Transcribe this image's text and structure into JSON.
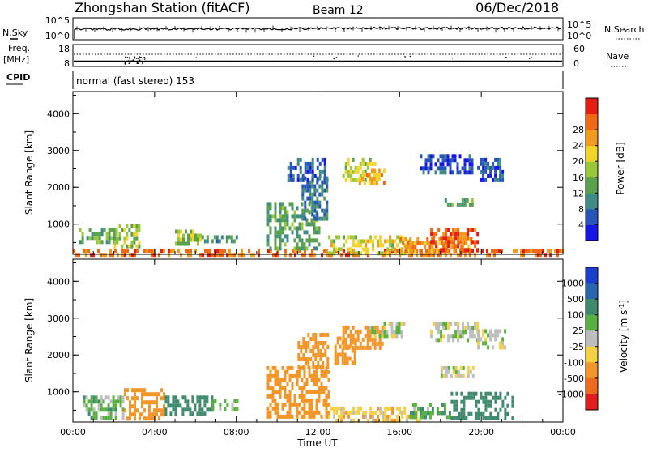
{
  "header": {
    "station": "Zhongshan Station (fitACF)",
    "beam": "Beam 12",
    "date": "06/Dec/2018"
  },
  "top_panels": {
    "nsky_label": "N.Sky",
    "nsky_ticks": [
      "10^5",
      "10^0"
    ],
    "nsearch_label": "N.Search",
    "nsearch_ticks": [
      "10^5",
      "10^0"
    ],
    "freq_label": "Freq.",
    "freq_unit": "[MHz]",
    "freq_ticks": [
      "18",
      "8"
    ],
    "nave_label": "Nave",
    "nave_ticks": [
      "60",
      "0"
    ],
    "cpid_label": "CPID",
    "cpid_text": "normal (fast stereo) 153"
  },
  "axes": {
    "xlabel": "Time UT",
    "x_ticks": [
      "00:00",
      "04:00",
      "08:00",
      "12:00",
      "16:00",
      "20:00",
      "00:00"
    ],
    "ylabel": "Slant Range [km]",
    "y_ticks": [
      "1000",
      "2000",
      "3000",
      "4000"
    ]
  },
  "colorbars": {
    "power": {
      "label": "Power [dB]",
      "ticks": [
        "4",
        "8",
        "12",
        "16",
        "20",
        "24",
        "28"
      ],
      "colors": [
        "#1616e6",
        "#2855b8",
        "#3f8c86",
        "#5aa14e",
        "#9ac73a",
        "#f2d42a",
        "#f29a1e",
        "#ef6a12",
        "#e61e12"
      ]
    },
    "velocity": {
      "label": "Velocity [m s",
      "label_exp": "-1",
      "label_end": "]",
      "ticks": [
        "1000",
        "500",
        "100",
        "25",
        "-25",
        "-100",
        "-500",
        "-1000"
      ],
      "colors": [
        "#1a3fcf",
        "#2a66b0",
        "#3f8a6e",
        "#58b040",
        "#bdbdbd",
        "#f5d040",
        "#f2962a",
        "#ee6a1c",
        "#e01e1e"
      ]
    }
  },
  "chart_data": [
    {
      "type": "heatmap",
      "title": "Power",
      "xlabel": "Time UT",
      "ylabel": "Slant Range [km]",
      "xlim": [
        0,
        24
      ],
      "ylim": [
        180,
        4600
      ],
      "zlim": [
        0,
        32
      ],
      "zlabel": "Power [dB]",
      "regions": [
        {
          "t": [
            0.0,
            24.0
          ],
          "r": [
            180,
            330
          ],
          "v": 26
        },
        {
          "t": [
            0.3,
            2.2
          ],
          "r": [
            500,
            900
          ],
          "v": 13
        },
        {
          "t": [
            2.0,
            3.2
          ],
          "r": [
            450,
            1000
          ],
          "v": 16
        },
        {
          "t": [
            5.0,
            6.3
          ],
          "r": [
            450,
            850
          ],
          "v": 15
        },
        {
          "t": [
            6.3,
            8.0
          ],
          "r": [
            500,
            700
          ],
          "v": 10
        },
        {
          "t": [
            9.5,
            12.0
          ],
          "r": [
            300,
            1600
          ],
          "v": 12
        },
        {
          "t": [
            11.2,
            12.5
          ],
          "r": [
            1200,
            2300
          ],
          "v": 8
        },
        {
          "t": [
            13.2,
            14.8
          ],
          "r": [
            2200,
            2800
          ],
          "v": 17
        },
        {
          "t": [
            14.0,
            15.2
          ],
          "r": [
            2100,
            2500
          ],
          "v": 22
        },
        {
          "t": [
            12.5,
            16.5
          ],
          "r": [
            250,
            700
          ],
          "v": 18
        },
        {
          "t": [
            16.0,
            19.5
          ],
          "r": [
            250,
            650
          ],
          "v": 24
        },
        {
          "t": [
            17.5,
            19.8
          ],
          "r": [
            350,
            900
          ],
          "v": 27
        },
        {
          "t": [
            17.0,
            19.5
          ],
          "r": [
            2400,
            2900
          ],
          "v": 5
        },
        {
          "t": [
            19.8,
            21.0
          ],
          "r": [
            2200,
            2800
          ],
          "v": 5
        },
        {
          "t": [
            18.2,
            19.6
          ],
          "r": [
            1500,
            1700
          ],
          "v": 12
        },
        {
          "t": [
            10.5,
            12.5
          ],
          "r": [
            2200,
            2800
          ],
          "v": 6
        }
      ]
    },
    {
      "type": "heatmap",
      "title": "Velocity",
      "xlabel": "Time UT",
      "ylabel": "Slant Range [km]",
      "xlim": [
        0,
        24
      ],
      "ylim": [
        180,
        4600
      ],
      "zlim": [
        -1000,
        1000
      ],
      "zlabel": "Velocity [m s-1]",
      "regions": [
        {
          "t": [
            0.5,
            2.5
          ],
          "r": [
            300,
            900
          ],
          "v": 60
        },
        {
          "t": [
            2.5,
            4.5
          ],
          "r": [
            250,
            1100
          ],
          "v": -300
        },
        {
          "t": [
            4.5,
            6.8
          ],
          "r": [
            400,
            900
          ],
          "v": 200
        },
        {
          "t": [
            6.8,
            8.0
          ],
          "r": [
            500,
            800
          ],
          "v": 40
        },
        {
          "t": [
            9.5,
            12.5
          ],
          "r": [
            300,
            1700
          ],
          "v": -400
        },
        {
          "t": [
            11.0,
            12.5
          ],
          "r": [
            1700,
            2600
          ],
          "v": -250
        },
        {
          "t": [
            13.2,
            15.2
          ],
          "r": [
            2200,
            2800
          ],
          "v": -400
        },
        {
          "t": [
            14.5,
            16.2
          ],
          "r": [
            2500,
            2900
          ],
          "v": 10
        },
        {
          "t": [
            12.5,
            17.0
          ],
          "r": [
            250,
            600
          ],
          "v": -60
        },
        {
          "t": [
            16.5,
            18.5
          ],
          "r": [
            300,
            700
          ],
          "v": 80
        },
        {
          "t": [
            18.5,
            21.5
          ],
          "r": [
            300,
            1000
          ],
          "v": 350
        },
        {
          "t": [
            17.5,
            19.8
          ],
          "r": [
            2400,
            2900
          ],
          "v": 5
        },
        {
          "t": [
            19.8,
            21.2
          ],
          "r": [
            2200,
            2700
          ],
          "v": 5
        },
        {
          "t": [
            18.0,
            19.6
          ],
          "r": [
            1450,
            1700
          ],
          "v": -10
        },
        {
          "t": [
            12.8,
            13.8
          ],
          "r": [
            1800,
            2500
          ],
          "v": -250
        }
      ]
    }
  ]
}
